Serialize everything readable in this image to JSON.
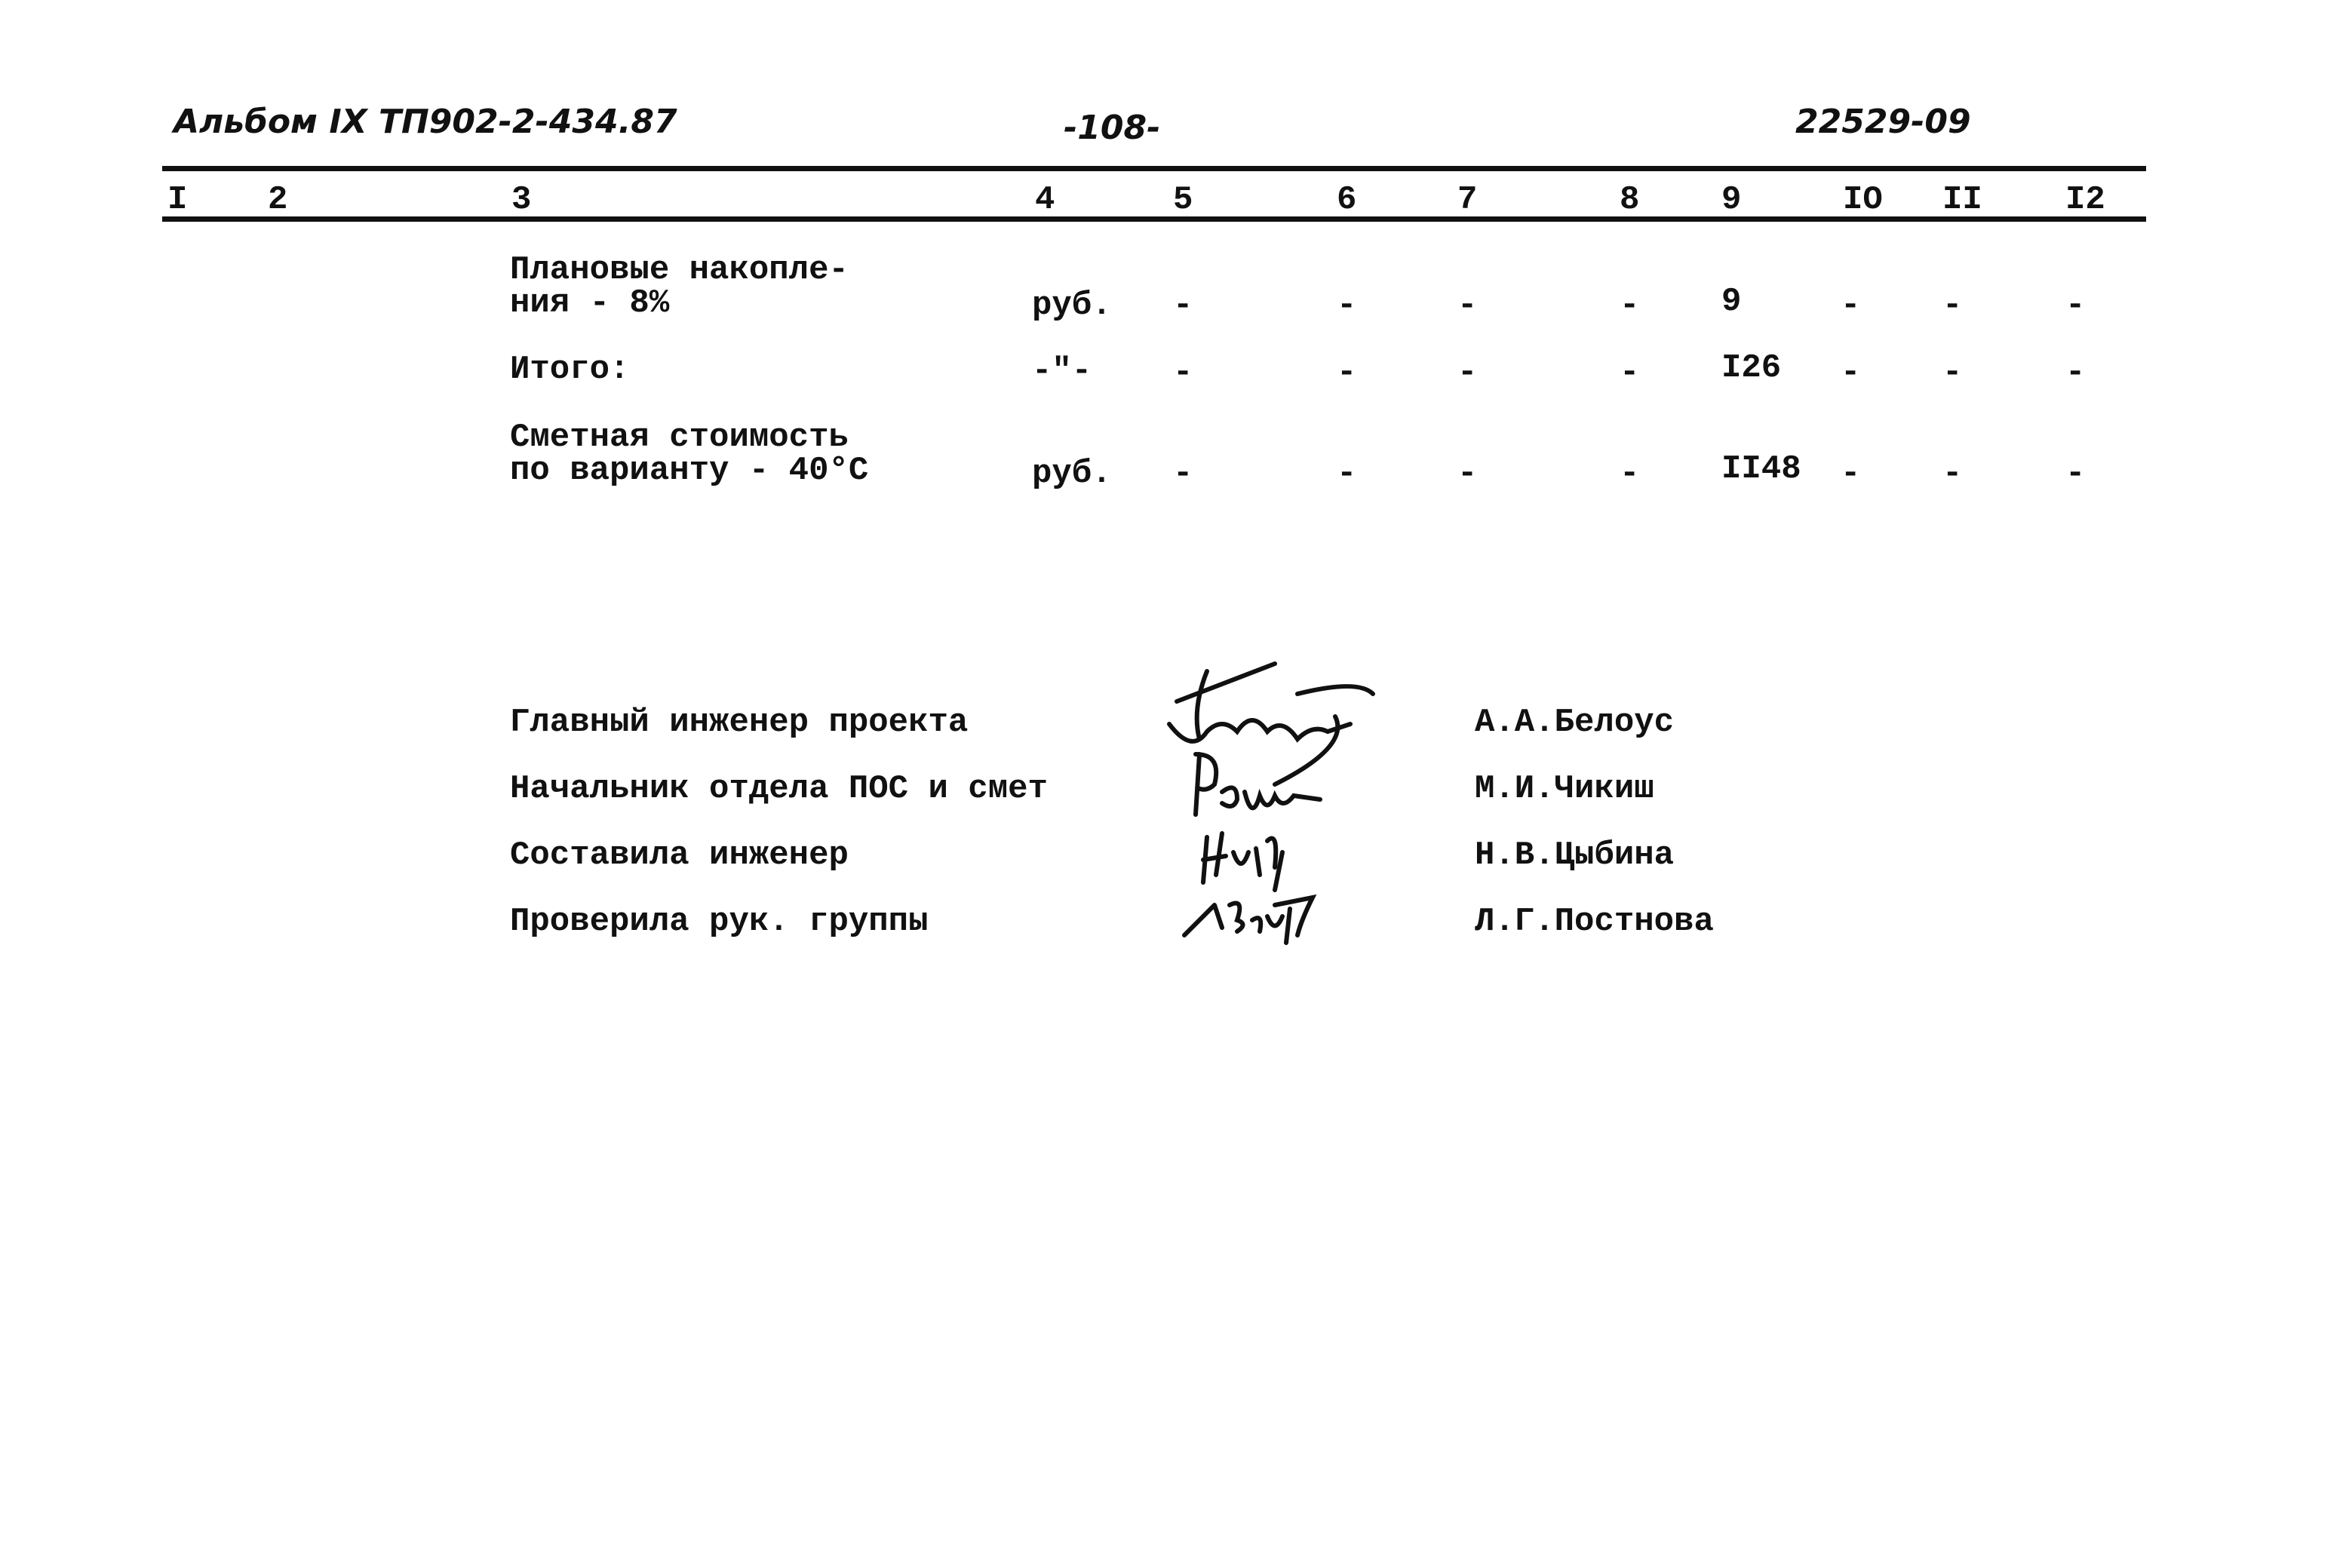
{
  "header": {
    "album": "Альбом IX  ТП902-2-434.87",
    "page": "-108-",
    "code": "22529-09"
  },
  "columns": [
    "I",
    "2",
    "3",
    "4",
    "5",
    "6",
    "7",
    "8",
    "9",
    "IO",
    "II",
    "I2"
  ],
  "rows": [
    {
      "name_line1": "Плановые накопле-",
      "name_line2": "ния - 8%",
      "unit": "руб.",
      "c5": "-",
      "c6": "-",
      "c7": "-",
      "c8": "-",
      "c9": "9",
      "c10": "-",
      "c11": "-",
      "c12": "-"
    },
    {
      "name_line1": "Итого:",
      "name_line2": "",
      "unit": "-\"-",
      "c5": "-",
      "c6": "-",
      "c7": "-",
      "c8": "-",
      "c9": "I26",
      "c10": "-",
      "c11": "-",
      "c12": "-"
    },
    {
      "name_line1": "Сметная стоимость",
      "name_line2": "по варианту - 40°С",
      "unit": "руб.",
      "c5": "-",
      "c6": "-",
      "c7": "-",
      "c8": "-",
      "c9": "II48",
      "c10": "-",
      "c11": "-",
      "c12": "-"
    }
  ],
  "signatures": [
    {
      "role": "Главный инженер проекта",
      "name": "А.А.Белоус"
    },
    {
      "role": "Начальник  отдела ПОС и смет",
      "name": "М.И.Чикиш"
    },
    {
      "role": "Составила инженер",
      "name": "Н.В.Цыбина"
    },
    {
      "role": "Проверила рук. группы",
      "name": "Л.Г.Постнова"
    }
  ]
}
